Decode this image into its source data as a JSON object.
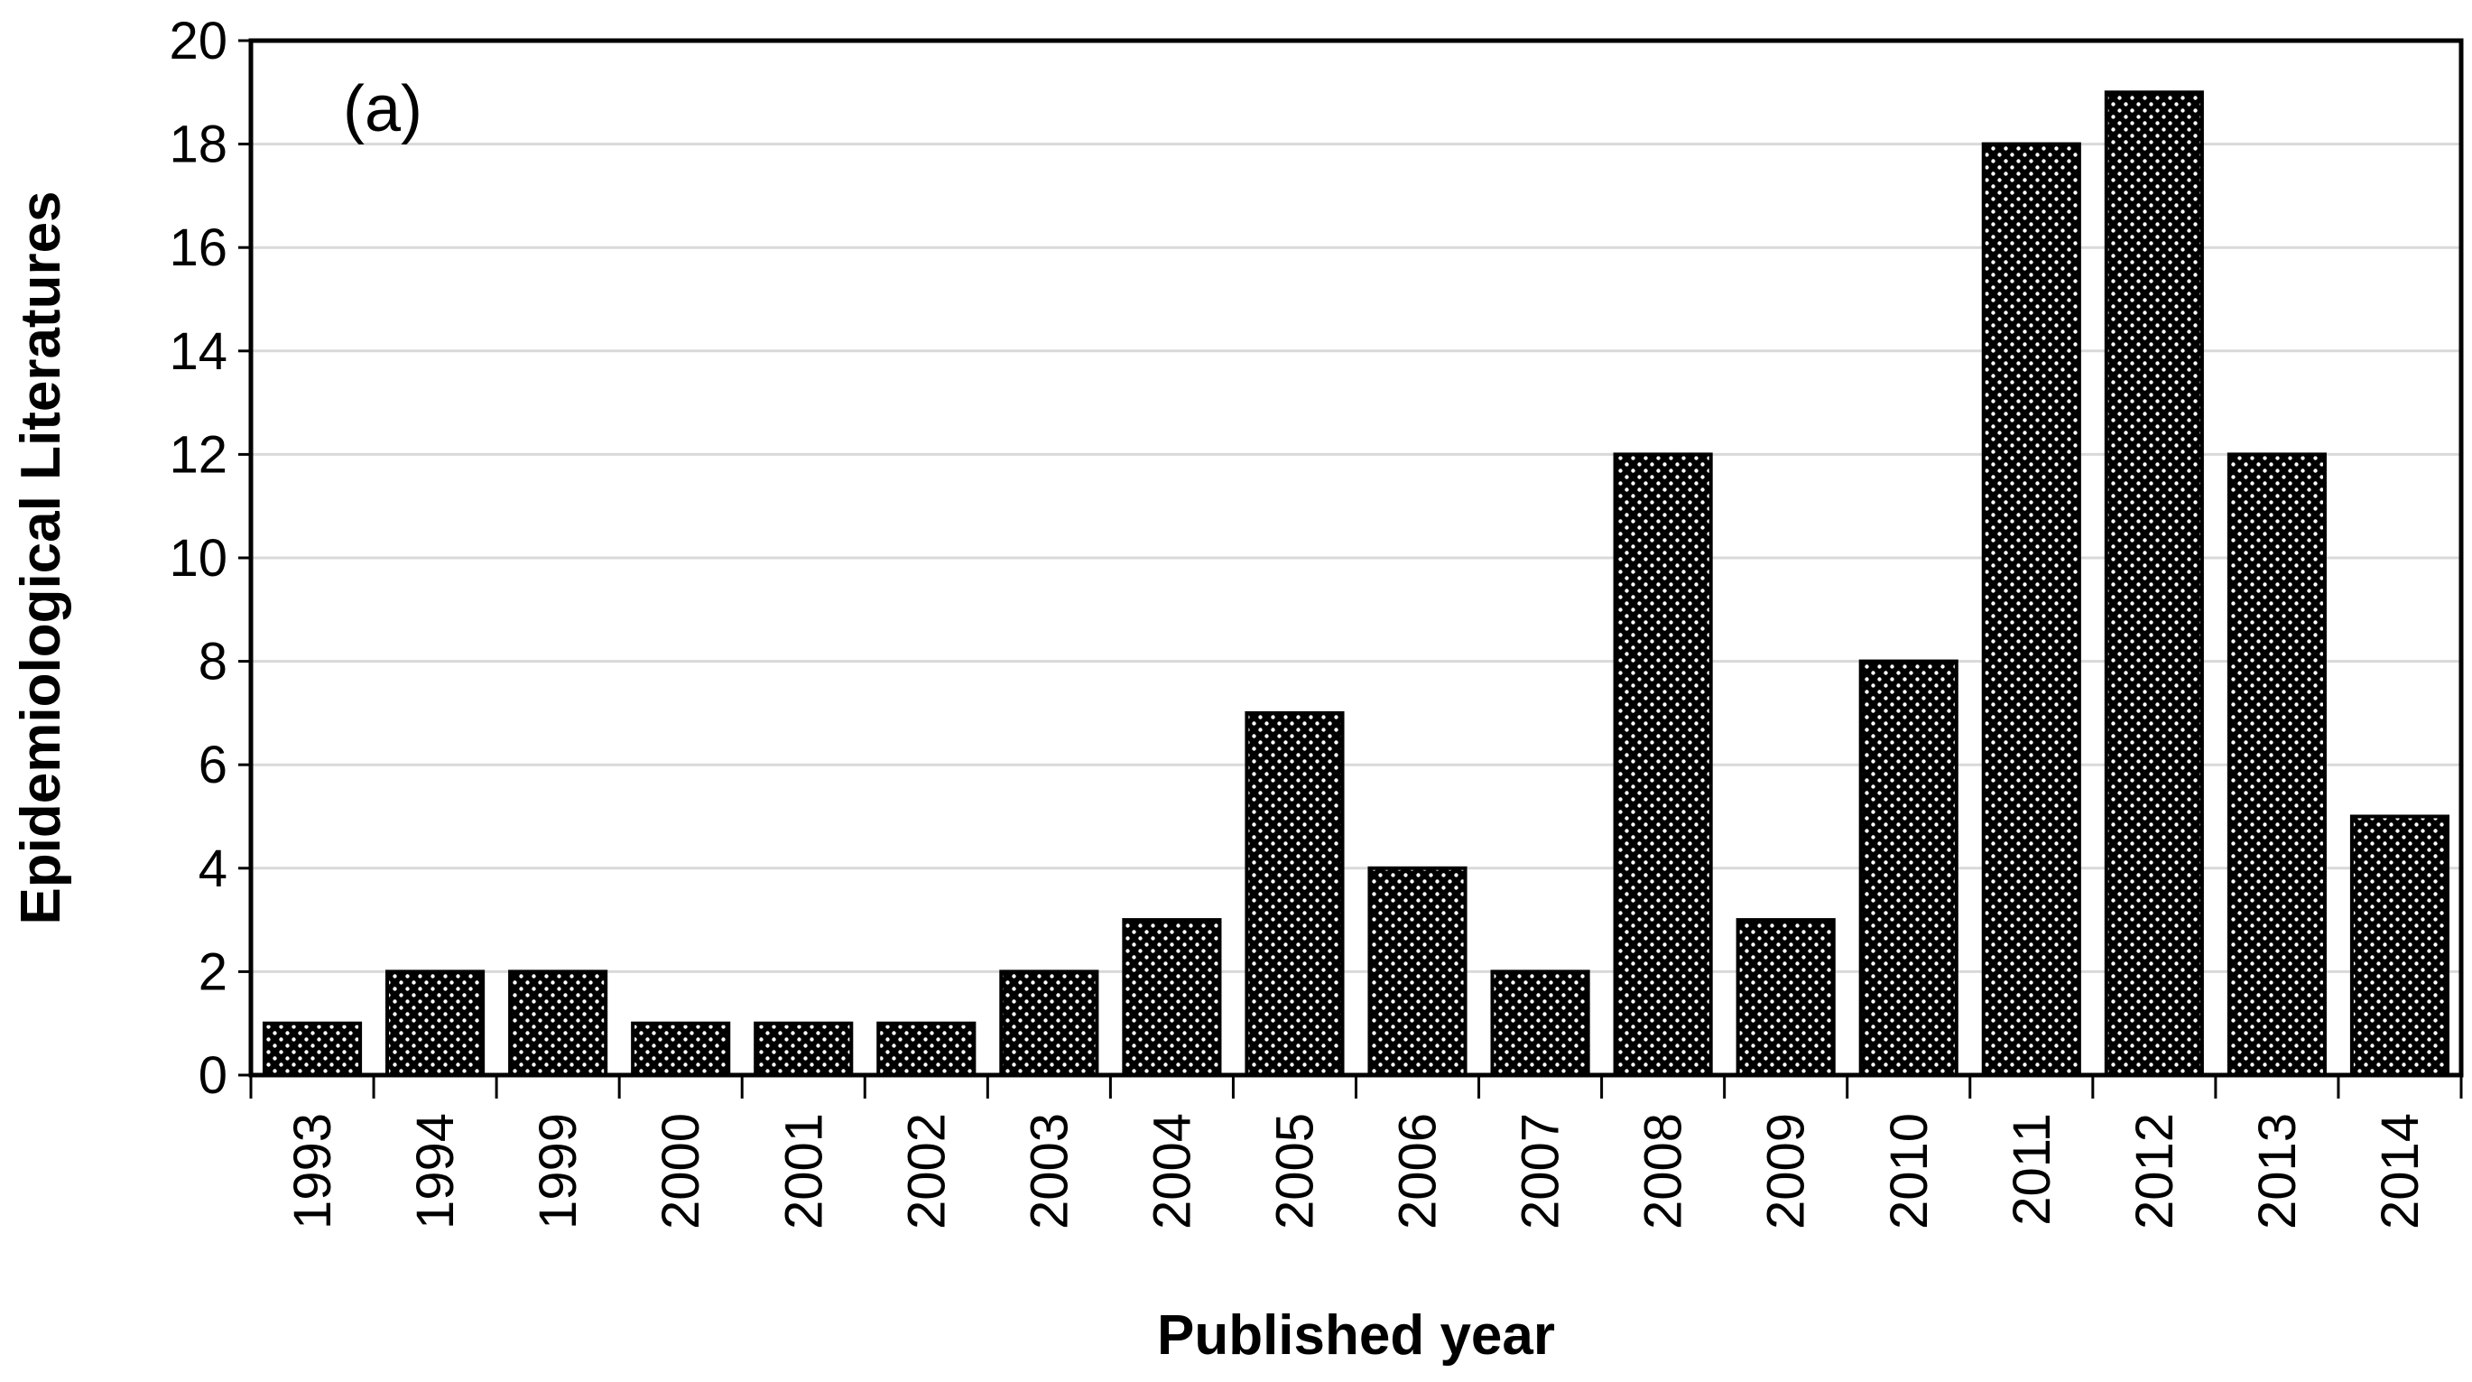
{
  "chart_data": {
    "type": "bar",
    "panel_label": "(a)",
    "title": "",
    "xlabel": "Published year",
    "ylabel": "Epidemiological Literatures",
    "ylim": [
      0,
      20
    ],
    "yticks": [
      0,
      2,
      4,
      6,
      8,
      10,
      12,
      14,
      16,
      18,
      20
    ],
    "grid": "horizontal",
    "bar_fill": "black with white dot pattern",
    "colors": {
      "bar": "#000000",
      "dots": "#ffffff",
      "grid": "#d9d9d9",
      "frame": "#000000"
    },
    "categories": [
      "1993",
      "1994",
      "1999",
      "2000",
      "2001",
      "2002",
      "2003",
      "2004",
      "2005",
      "2006",
      "2007",
      "2008",
      "2009",
      "2010",
      "2011",
      "2012",
      "2013",
      "2014"
    ],
    "values": [
      1,
      2,
      2,
      1,
      1,
      1,
      2,
      3,
      7,
      4,
      2,
      12,
      3,
      8,
      18,
      19,
      12,
      5
    ]
  }
}
